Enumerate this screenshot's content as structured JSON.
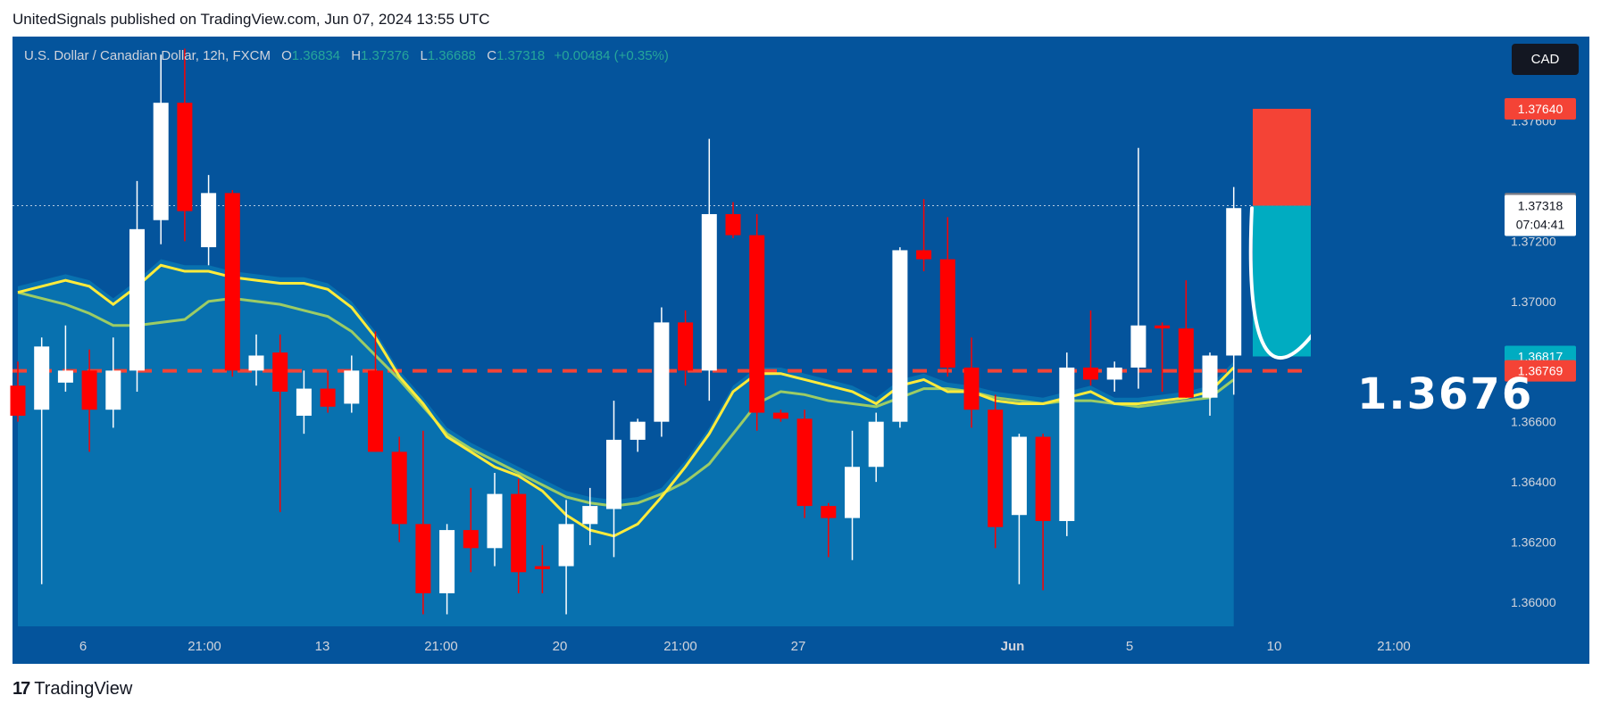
{
  "header": {
    "published": "UnitedSignals published on TradingView.com, Jun 07, 2024 13:55 UTC"
  },
  "legend": {
    "symbol": "U.S. Dollar / Canadian Dollar, 12h, FXCM",
    "o_key": "O",
    "o_val": "1.36834",
    "h_key": "H",
    "h_val": "1.37376",
    "l_key": "L",
    "l_val": "1.36688",
    "c_key": "C",
    "c_val": "1.37318",
    "change": "+0.00484 (+0.35%)"
  },
  "currency_button": "CAD",
  "annotation": {
    "target_text": "1.3676"
  },
  "footer": {
    "brand": "TradingView",
    "logo": "17"
  },
  "colors": {
    "background": "#04549c",
    "up": "#ffffff",
    "down": "#ff0000",
    "stop": "#f44336",
    "target": "#00acc1",
    "ema_fast": "#ffeb3b",
    "ema_slow": "#9ccc65",
    "dashed": "#f44336"
  },
  "chart_data": {
    "type": "candlestick",
    "ylim": [
      1.3592,
      1.3788
    ],
    "y_ticks": [
      "1.37600",
      "1.37200",
      "1.37000",
      "1.36600",
      "1.36400",
      "1.36200",
      "1.36000"
    ],
    "x_ticks": [
      "6",
      "21:00",
      "13",
      "21:00",
      "20",
      "21:00",
      "27",
      "Jun",
      "5",
      "10",
      "21:00"
    ],
    "price_labels": [
      {
        "text": "1.37640",
        "value": 1.3764,
        "color": "#f44336"
      },
      {
        "text": "1.37325",
        "value": 1.37325,
        "color": "#787b86"
      },
      {
        "text": "1.37318",
        "sub": "07:04:41",
        "value": 1.37318,
        "color": "#ffffff"
      },
      {
        "text": "1.36817",
        "value": 1.36817,
        "color": "#00acc1"
      },
      {
        "text": "1.36769",
        "value": 1.36769,
        "color": "#f44336"
      }
    ],
    "candles": [
      {
        "o": 1.3672,
        "h": 1.368,
        "l": 1.366,
        "c": 1.3662
      },
      {
        "o": 1.3664,
        "h": 1.3688,
        "l": 1.3606,
        "c": 1.3685
      },
      {
        "o": 1.3673,
        "h": 1.3692,
        "l": 1.367,
        "c": 1.3677
      },
      {
        "o": 1.3677,
        "h": 1.3684,
        "l": 1.365,
        "c": 1.3664
      },
      {
        "o": 1.3664,
        "h": 1.3688,
        "l": 1.3658,
        "c": 1.3677
      },
      {
        "o": 1.3677,
        "h": 1.374,
        "l": 1.367,
        "c": 1.3724
      },
      {
        "o": 1.3727,
        "h": 1.3782,
        "l": 1.3719,
        "c": 1.3766
      },
      {
        "o": 1.3766,
        "h": 1.3784,
        "l": 1.372,
        "c": 1.373
      },
      {
        "o": 1.3718,
        "h": 1.3742,
        "l": 1.3712,
        "c": 1.3736
      },
      {
        "o": 1.3736,
        "h": 1.3737,
        "l": 1.3675,
        "c": 1.3677
      },
      {
        "o": 1.3677,
        "h": 1.3689,
        "l": 1.3672,
        "c": 1.3682
      },
      {
        "o": 1.3683,
        "h": 1.3689,
        "l": 1.363,
        "c": 1.367
      },
      {
        "o": 1.3662,
        "h": 1.3677,
        "l": 1.3656,
        "c": 1.3671
      },
      {
        "o": 1.3671,
        "h": 1.3677,
        "l": 1.3663,
        "c": 1.3665
      },
      {
        "o": 1.3666,
        "h": 1.3682,
        "l": 1.3663,
        "c": 1.3677
      },
      {
        "o": 1.3677,
        "h": 1.369,
        "l": 1.365,
        "c": 1.365
      },
      {
        "o": 1.365,
        "h": 1.3655,
        "l": 1.362,
        "c": 1.3626
      },
      {
        "o": 1.3626,
        "h": 1.3657,
        "l": 1.3596,
        "c": 1.3603
      },
      {
        "o": 1.3603,
        "h": 1.3626,
        "l": 1.3596,
        "c": 1.3624
      },
      {
        "o": 1.3624,
        "h": 1.3638,
        "l": 1.361,
        "c": 1.3618
      },
      {
        "o": 1.3618,
        "h": 1.3643,
        "l": 1.3612,
        "c": 1.3636
      },
      {
        "o": 1.3636,
        "h": 1.3641,
        "l": 1.3603,
        "c": 1.361
      },
      {
        "o": 1.3612,
        "h": 1.3619,
        "l": 1.3603,
        "c": 1.3611
      },
      {
        "o": 1.3612,
        "h": 1.3634,
        "l": 1.3596,
        "c": 1.3626
      },
      {
        "o": 1.3626,
        "h": 1.3638,
        "l": 1.3619,
        "c": 1.3632
      },
      {
        "o": 1.3631,
        "h": 1.3667,
        "l": 1.3615,
        "c": 1.3654
      },
      {
        "o": 1.3654,
        "h": 1.3661,
        "l": 1.365,
        "c": 1.366
      },
      {
        "o": 1.366,
        "h": 1.3698,
        "l": 1.3655,
        "c": 1.3693
      },
      {
        "o": 1.3693,
        "h": 1.3697,
        "l": 1.3672,
        "c": 1.3677
      },
      {
        "o": 1.3677,
        "h": 1.3754,
        "l": 1.3667,
        "c": 1.3729
      },
      {
        "o": 1.3729,
        "h": 1.3733,
        "l": 1.3721,
        "c": 1.3722
      },
      {
        "o": 1.3722,
        "h": 1.3729,
        "l": 1.3657,
        "c": 1.3663
      },
      {
        "o": 1.3663,
        "h": 1.3664,
        "l": 1.366,
        "c": 1.3661
      },
      {
        "o": 1.3661,
        "h": 1.3664,
        "l": 1.3628,
        "c": 1.3632
      },
      {
        "o": 1.3632,
        "h": 1.3633,
        "l": 1.3615,
        "c": 1.3628
      },
      {
        "o": 1.3628,
        "h": 1.3657,
        "l": 1.3614,
        "c": 1.3645
      },
      {
        "o": 1.3645,
        "h": 1.3663,
        "l": 1.364,
        "c": 1.366
      },
      {
        "o": 1.366,
        "h": 1.3718,
        "l": 1.3658,
        "c": 1.3717
      },
      {
        "o": 1.3717,
        "h": 1.3734,
        "l": 1.371,
        "c": 1.3714
      },
      {
        "o": 1.3714,
        "h": 1.3728,
        "l": 1.3675,
        "c": 1.3678
      },
      {
        "o": 1.3678,
        "h": 1.3688,
        "l": 1.3658,
        "c": 1.3664
      },
      {
        "o": 1.3664,
        "h": 1.3669,
        "l": 1.3618,
        "c": 1.3625
      },
      {
        "o": 1.3629,
        "h": 1.3656,
        "l": 1.3606,
        "c": 1.3655
      },
      {
        "o": 1.3655,
        "h": 1.3656,
        "l": 1.3604,
        "c": 1.3627
      },
      {
        "o": 1.3627,
        "h": 1.3683,
        "l": 1.3622,
        "c": 1.3678
      },
      {
        "o": 1.3678,
        "h": 1.3697,
        "l": 1.3672,
        "c": 1.3674
      },
      {
        "o": 1.3674,
        "h": 1.368,
        "l": 1.367,
        "c": 1.3678
      },
      {
        "o": 1.3678,
        "h": 1.3751,
        "l": 1.3671,
        "c": 1.3692
      },
      {
        "o": 1.3692,
        "h": 1.3693,
        "l": 1.367,
        "c": 1.3691
      },
      {
        "o": 1.3691,
        "h": 1.3707,
        "l": 1.3668,
        "c": 1.3668
      },
      {
        "o": 1.3668,
        "h": 1.3683,
        "l": 1.3662,
        "c": 1.3682
      },
      {
        "o": 1.3682,
        "h": 1.3738,
        "l": 1.3669,
        "c": 1.3731
      }
    ],
    "ema_fast": [
      1.3703,
      1.3705,
      1.3707,
      1.3705,
      1.3699,
      1.3705,
      1.3712,
      1.371,
      1.371,
      1.3708,
      1.3707,
      1.3706,
      1.3706,
      1.3704,
      1.3698,
      1.3688,
      1.3675,
      1.3666,
      1.3655,
      1.365,
      1.3645,
      1.3642,
      1.3637,
      1.3629,
      1.3624,
      1.3622,
      1.3626,
      1.3635,
      1.3645,
      1.3656,
      1.367,
      1.3676,
      1.3676,
      1.3674,
      1.3672,
      1.367,
      1.3666,
      1.3672,
      1.3674,
      1.367,
      1.367,
      1.3667,
      1.3666,
      1.3666,
      1.3668,
      1.367,
      1.3666,
      1.3666,
      1.3667,
      1.3668,
      1.367,
      1.3678
    ],
    "ema_slow": [
      1.3703,
      1.3701,
      1.3699,
      1.3696,
      1.3692,
      1.3692,
      1.3693,
      1.3694,
      1.37,
      1.3701,
      1.37,
      1.3699,
      1.3697,
      1.3695,
      1.369,
      1.3682,
      1.3674,
      1.3665,
      1.3656,
      1.3651,
      1.3647,
      1.3643,
      1.3639,
      1.3635,
      1.3633,
      1.3632,
      1.3633,
      1.3636,
      1.364,
      1.3646,
      1.3656,
      1.3666,
      1.367,
      1.3669,
      1.3667,
      1.3666,
      1.3665,
      1.3668,
      1.3671,
      1.3671,
      1.367,
      1.3668,
      1.3667,
      1.3666,
      1.3667,
      1.3667,
      1.3666,
      1.3665,
      1.3666,
      1.3667,
      1.3668,
      1.3674
    ],
    "position": {
      "entry": 1.37318,
      "stop": 1.3764,
      "target": 1.36817
    },
    "dashed_level": 1.36769
  }
}
